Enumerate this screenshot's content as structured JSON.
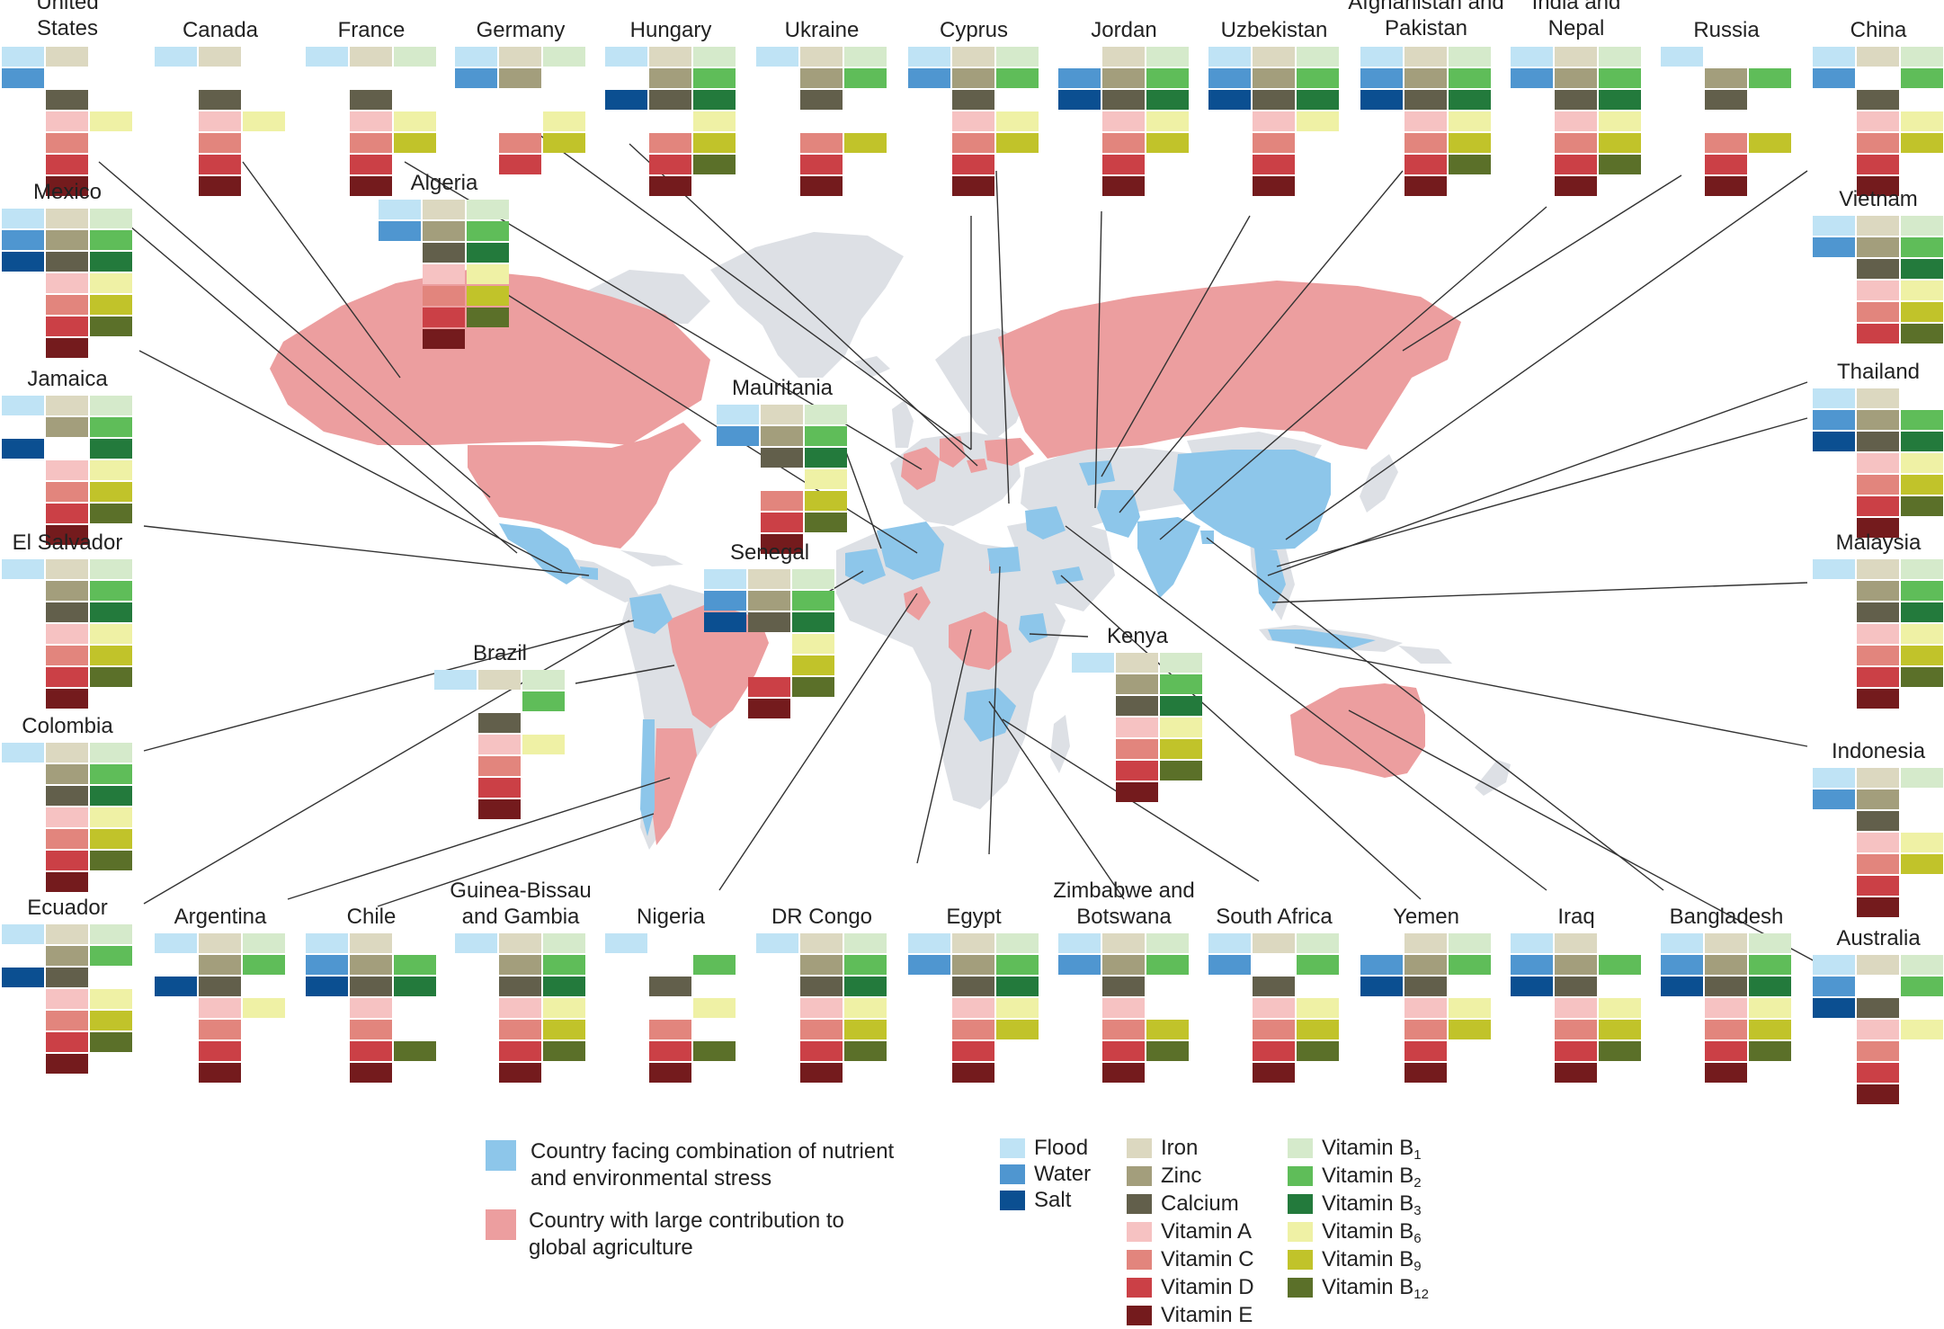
{
  "map_title": "",
  "layer_colors": {
    "background_land": "#dde0e5",
    "stress_country": "#8dc6ea",
    "agriculture_country": "#ec9e9f",
    "leader_line": "#333333"
  },
  "cell_colors": {
    "flood": "#bfe3f5",
    "water": "#4f96d0",
    "salt": "#0b4f91",
    "iron": "#dcd8c0",
    "zinc": "#a39e7c",
    "calcium": "#625f4b",
    "vitA": "#f6c2c2",
    "vitC": "#e2857d",
    "vitD": "#cb4046",
    "vitE": "#741b1d",
    "B1": "#d5eacb",
    "B2": "#5fbd59",
    "B3": "#237a3c",
    "B6": "#eff1a5",
    "B9": "#c1c32a",
    "B12": "#5b7029"
  },
  "countries": [
    {
      "name": "United\nStates",
      "deficiencies": [
        "flood",
        "water",
        "iron",
        "calcium",
        "B6",
        "vitA",
        "vitC",
        "vitD",
        "vitE"
      ]
    },
    {
      "name": "Canada",
      "deficiencies": [
        "flood",
        "iron",
        "calcium",
        "B6",
        "vitA",
        "vitC",
        "vitD",
        "vitE"
      ]
    },
    {
      "name": "France",
      "deficiencies": [
        "flood",
        "iron",
        "calcium",
        "B1",
        "B6",
        "B9",
        "vitA",
        "vitC",
        "vitD",
        "vitE"
      ]
    },
    {
      "name": "Germany",
      "deficiencies": [
        "flood",
        "water",
        "iron",
        "zinc",
        "B1",
        "B6",
        "B9",
        "vitC",
        "vitD"
      ]
    },
    {
      "name": "Hungary",
      "deficiencies": [
        "flood",
        "salt",
        "iron",
        "zinc",
        "calcium",
        "B1",
        "B2",
        "B3",
        "vitC",
        "vitD",
        "vitE",
        "B6",
        "B9",
        "B12"
      ]
    },
    {
      "name": "Ukraine",
      "deficiencies": [
        "flood",
        "iron",
        "zinc",
        "calcium",
        "B1",
        "B2",
        "B9",
        "vitC",
        "vitD",
        "vitE"
      ]
    },
    {
      "name": "Cyprus",
      "deficiencies": [
        "flood",
        "water",
        "iron",
        "zinc",
        "calcium",
        "B1",
        "B2",
        "B6",
        "B9",
        "vitA",
        "vitC",
        "vitD",
        "vitE"
      ]
    },
    {
      "name": "Jordan",
      "deficiencies": [
        "water",
        "salt",
        "iron",
        "zinc",
        "calcium",
        "B1",
        "B2",
        "B3",
        "vitA",
        "vitC",
        "vitD",
        "vitE",
        "B6",
        "B9"
      ]
    },
    {
      "name": "Uzbekistan",
      "deficiencies": [
        "flood",
        "water",
        "salt",
        "iron",
        "zinc",
        "calcium",
        "B1",
        "B2",
        "B3",
        "B6",
        "vitA",
        "vitC",
        "vitD",
        "vitE"
      ]
    },
    {
      "name": "Afghanistan and\nPakistan",
      "deficiencies": [
        "flood",
        "water",
        "salt",
        "iron",
        "zinc",
        "calcium",
        "B1",
        "B2",
        "B3",
        "B6",
        "B9",
        "B12",
        "vitA",
        "vitC",
        "vitD",
        "vitE"
      ]
    },
    {
      "name": "India and\nNepal",
      "deficiencies": [
        "flood",
        "water",
        "iron",
        "zinc",
        "calcium",
        "B1",
        "B2",
        "B3",
        "B6",
        "B9",
        "B12",
        "vitA",
        "vitC",
        "vitD",
        "vitE"
      ]
    },
    {
      "name": "Russia",
      "deficiencies": [
        "flood",
        "zinc",
        "calcium",
        "B2",
        "B9",
        "vitC",
        "vitD",
        "vitE"
      ]
    },
    {
      "name": "China",
      "deficiencies": [
        "flood",
        "water",
        "iron",
        "calcium",
        "B1",
        "B2",
        "B6",
        "B9",
        "vitA",
        "vitC",
        "vitD",
        "vitE"
      ]
    },
    {
      "name": "Mexico",
      "deficiencies": [
        "flood",
        "water",
        "salt",
        "iron",
        "zinc",
        "calcium",
        "B1",
        "B2",
        "B3",
        "B6",
        "B9",
        "B12",
        "vitA",
        "vitC",
        "vitD",
        "vitE"
      ]
    },
    {
      "name": "Algeria",
      "deficiencies": [
        "flood",
        "water",
        "iron",
        "zinc",
        "calcium",
        "B1",
        "B2",
        "B3",
        "B6",
        "B9",
        "B12",
        "vitA",
        "vitC",
        "vitD",
        "vitE"
      ]
    },
    {
      "name": "Vietnam",
      "deficiencies": [
        "flood",
        "water",
        "iron",
        "zinc",
        "calcium",
        "B1",
        "B2",
        "B3",
        "B6",
        "B9",
        "B12",
        "vitA",
        "vitC",
        "vitD"
      ]
    },
    {
      "name": "Jamaica",
      "deficiencies": [
        "flood",
        "salt",
        "iron",
        "zinc",
        "B1",
        "B2",
        "B3",
        "B6",
        "B9",
        "B12",
        "vitA",
        "vitC",
        "vitD",
        "vitE"
      ]
    },
    {
      "name": "Mauritania",
      "deficiencies": [
        "flood",
        "water",
        "iron",
        "zinc",
        "calcium",
        "B1",
        "B2",
        "B3",
        "B6",
        "B9",
        "B12",
        "vitC",
        "vitD",
        "vitE"
      ]
    },
    {
      "name": "Thailand",
      "deficiencies": [
        "flood",
        "water",
        "salt",
        "iron",
        "zinc",
        "calcium",
        "B2",
        "B3",
        "B6",
        "B9",
        "B12",
        "vitA",
        "vitC",
        "vitD",
        "vitE"
      ]
    },
    {
      "name": "El Salvador",
      "deficiencies": [
        "flood",
        "iron",
        "zinc",
        "calcium",
        "B1",
        "B2",
        "B3",
        "B6",
        "B9",
        "B12",
        "vitA",
        "vitC",
        "vitD",
        "vitE"
      ]
    },
    {
      "name": "Senegal",
      "deficiencies": [
        "flood",
        "water",
        "salt",
        "iron",
        "zinc",
        "calcium",
        "B1",
        "B2",
        "B3",
        "B6",
        "B9",
        "B12",
        "vitD",
        "vitE"
      ]
    },
    {
      "name": "Malaysia",
      "deficiencies": [
        "flood",
        "iron",
        "zinc",
        "calcium",
        "B1",
        "B2",
        "B3",
        "B6",
        "B9",
        "B12",
        "vitA",
        "vitC",
        "vitD",
        "vitE"
      ]
    },
    {
      "name": "Brazil",
      "deficiencies": [
        "flood",
        "iron",
        "calcium",
        "B1",
        "B2",
        "B6",
        "vitA",
        "vitC",
        "vitD",
        "vitE"
      ]
    },
    {
      "name": "Kenya",
      "deficiencies": [
        "flood",
        "iron",
        "zinc",
        "calcium",
        "B1",
        "B2",
        "B3",
        "B6",
        "B9",
        "B12",
        "vitA",
        "vitC",
        "vitD",
        "vitE"
      ]
    },
    {
      "name": "Colombia",
      "deficiencies": [
        "flood",
        "iron",
        "zinc",
        "calcium",
        "B1",
        "B2",
        "B3",
        "B6",
        "B9",
        "B12",
        "vitA",
        "vitC",
        "vitD",
        "vitE"
      ]
    },
    {
      "name": "Indonesia",
      "deficiencies": [
        "flood",
        "water",
        "iron",
        "zinc",
        "calcium",
        "B1",
        "B6",
        "B9",
        "vitA",
        "vitC",
        "vitD",
        "vitE"
      ]
    },
    {
      "name": "Ecuador",
      "deficiencies": [
        "flood",
        "salt",
        "iron",
        "zinc",
        "calcium",
        "B1",
        "B2",
        "B6",
        "B9",
        "B12",
        "vitA",
        "vitC",
        "vitD",
        "vitE"
      ]
    },
    {
      "name": "Argentina",
      "deficiencies": [
        "flood",
        "salt",
        "iron",
        "zinc",
        "calcium",
        "B1",
        "B2",
        "B6",
        "vitA",
        "vitC",
        "vitD",
        "vitE"
      ]
    },
    {
      "name": "Chile",
      "deficiencies": [
        "flood",
        "water",
        "salt",
        "iron",
        "zinc",
        "calcium",
        "B2",
        "B3",
        "B12",
        "vitA",
        "vitC",
        "vitD",
        "vitE"
      ]
    },
    {
      "name": "Guinea-Bissau\nand Gambia",
      "deficiencies": [
        "flood",
        "iron",
        "zinc",
        "calcium",
        "B1",
        "B2",
        "B3",
        "B6",
        "B9",
        "B12",
        "vitA",
        "vitC",
        "vitD",
        "vitE"
      ]
    },
    {
      "name": "Nigeria",
      "deficiencies": [
        "flood",
        "calcium",
        "B2",
        "B6",
        "B12",
        "vitC",
        "vitD",
        "vitE"
      ]
    },
    {
      "name": "DR Congo",
      "deficiencies": [
        "flood",
        "iron",
        "zinc",
        "calcium",
        "B1",
        "B2",
        "B3",
        "B6",
        "B9",
        "B12",
        "vitA",
        "vitC",
        "vitD",
        "vitE"
      ]
    },
    {
      "name": "Egypt",
      "deficiencies": [
        "flood",
        "water",
        "iron",
        "zinc",
        "calcium",
        "B1",
        "B2",
        "B3",
        "B6",
        "B9",
        "vitA",
        "vitC",
        "vitD",
        "vitE"
      ]
    },
    {
      "name": "Zimbabwe and\nBotswana",
      "deficiencies": [
        "flood",
        "water",
        "iron",
        "zinc",
        "calcium",
        "B1",
        "B2",
        "B9",
        "B12",
        "vitA",
        "vitC",
        "vitD",
        "vitE"
      ]
    },
    {
      "name": "South Africa",
      "deficiencies": [
        "flood",
        "water",
        "iron",
        "calcium",
        "B1",
        "B2",
        "B6",
        "B9",
        "B12",
        "vitA",
        "vitC",
        "vitD",
        "vitE"
      ]
    },
    {
      "name": "Yemen",
      "deficiencies": [
        "water",
        "salt",
        "iron",
        "zinc",
        "calcium",
        "B1",
        "B2",
        "B6",
        "B9",
        "vitA",
        "vitC",
        "vitD",
        "vitE"
      ]
    },
    {
      "name": "Iraq",
      "deficiencies": [
        "flood",
        "water",
        "salt",
        "iron",
        "zinc",
        "calcium",
        "B2",
        "B6",
        "B9",
        "B12",
        "vitA",
        "vitC",
        "vitD",
        "vitE"
      ]
    },
    {
      "name": "Bangladesh",
      "deficiencies": [
        "flood",
        "water",
        "salt",
        "iron",
        "zinc",
        "calcium",
        "B1",
        "B2",
        "B3",
        "B6",
        "B9",
        "B12",
        "vitA",
        "vitC",
        "vitD",
        "vitE"
      ]
    },
    {
      "name": "Australia",
      "deficiencies": [
        "flood",
        "water",
        "salt",
        "iron",
        "calcium",
        "B1",
        "B2",
        "B6",
        "vitA",
        "vitC",
        "vitD",
        "vitE"
      ]
    }
  ],
  "legend": {
    "stress_label": "Country facing combination of nutrient\nand environmental stress",
    "agriculture_label": "Country with large contribution to\nglobal agriculture",
    "environment": [
      {
        "key": "flood",
        "label": "Flood"
      },
      {
        "key": "water",
        "label": "Water"
      },
      {
        "key": "salt",
        "label": "Salt"
      }
    ],
    "nutrients_left": [
      {
        "key": "iron",
        "label": "Iron"
      },
      {
        "key": "zinc",
        "label": "Zinc"
      },
      {
        "key": "calcium",
        "label": "Calcium"
      },
      {
        "key": "vitA",
        "label": "Vitamin A"
      },
      {
        "key": "vitC",
        "label": "Vitamin C"
      },
      {
        "key": "vitD",
        "label": "Vitamin D"
      },
      {
        "key": "vitE",
        "label": "Vitamin E"
      }
    ],
    "nutrients_right": [
      {
        "key": "B1",
        "label": "Vitamin B",
        "sub": "1"
      },
      {
        "key": "B2",
        "label": "Vitamin B",
        "sub": "2"
      },
      {
        "key": "B3",
        "label": "Vitamin B",
        "sub": "3"
      },
      {
        "key": "B6",
        "label": "Vitamin B",
        "sub": "6"
      },
      {
        "key": "B9",
        "label": "Vitamin B",
        "sub": "9"
      },
      {
        "key": "B12",
        "label": "Vitamin B",
        "sub": "12"
      }
    ]
  }
}
